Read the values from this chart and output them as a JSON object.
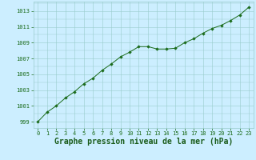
{
  "x": [
    0,
    1,
    2,
    3,
    4,
    5,
    6,
    7,
    8,
    9,
    10,
    11,
    12,
    13,
    14,
    15,
    16,
    17,
    18,
    19,
    20,
    21,
    22,
    23
  ],
  "y": [
    999.0,
    1000.2,
    1001.0,
    1002.0,
    1002.8,
    1003.8,
    1004.5,
    1005.5,
    1006.3,
    1007.2,
    1007.8,
    1008.5,
    1008.5,
    1008.2,
    1008.2,
    1008.3,
    1009.0,
    1009.5,
    1010.2,
    1010.8,
    1011.2,
    1011.8,
    1012.5,
    1013.5
  ],
  "line_color": "#1a6b1a",
  "marker_color": "#1a6b1a",
  "bg_color": "#cceeff",
  "grid_color": "#99cccc",
  "xlabel": "Graphe pression niveau de la mer (hPa)",
  "xlabel_color": "#1a5c1a",
  "xticks": [
    0,
    1,
    2,
    3,
    4,
    5,
    6,
    7,
    8,
    9,
    10,
    11,
    12,
    13,
    14,
    15,
    16,
    17,
    18,
    19,
    20,
    21,
    22,
    23
  ],
  "yticks": [
    999,
    1001,
    1003,
    1005,
    1007,
    1009,
    1011,
    1013
  ],
  "ylim": [
    998.2,
    1014.2
  ],
  "xlim": [
    -0.5,
    23.5
  ],
  "tick_labelsize": 5.0,
  "xlabel_fontsize": 7.0
}
